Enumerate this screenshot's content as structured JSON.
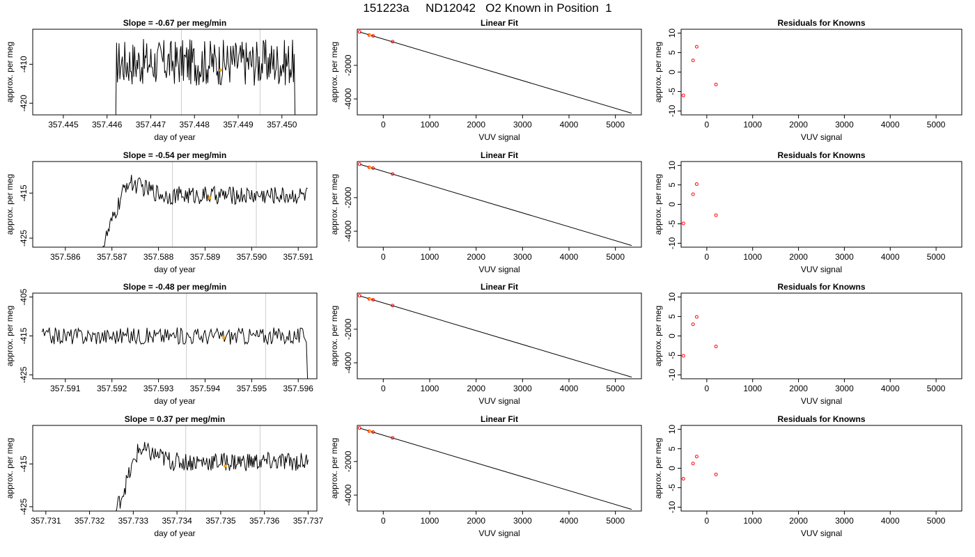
{
  "title": "151223a     ND12042   O2 Known in Position  1",
  "colors": {
    "line": "#000000",
    "marker_orange": "#ffa500",
    "marker_red": "#ff0000",
    "vline": "#cccccc"
  },
  "chart_data": [
    {
      "type": "line",
      "title": "Slope =  -0.67  per meg/min",
      "xlabel": "day of year",
      "ylabel": "approx. per meg",
      "xlim": [
        357.4443,
        357.4508
      ],
      "ylim": [
        -423,
        -401
      ],
      "xticks": [
        357.445,
        357.446,
        357.447,
        357.448,
        357.449,
        357.45
      ],
      "xtick_labels": [
        "357.445",
        "357.446",
        "357.447",
        "357.448",
        "357.449",
        "357.450"
      ],
      "yticks": [
        -420,
        -410
      ],
      "ytick_labels": [
        "-420",
        "-410"
      ],
      "vlines": [
        357.4477,
        357.4495
      ],
      "series_x_range": [
        357.4462,
        357.4503
      ],
      "series_level": -409.5,
      "series_noise": 6,
      "series_ramp": false,
      "start_value": -423,
      "end_value": -423,
      "marker": {
        "x": 357.4486,
        "y": -411.5
      }
    },
    {
      "type": "line",
      "title": "Slope =  -0.54  per meg/min",
      "xlabel": "day of year",
      "ylabel": "approx. per meg",
      "xlim": [
        357.5853,
        357.5914
      ],
      "ylim": [
        -427,
        -408
      ],
      "xticks": [
        357.586,
        357.587,
        357.588,
        357.589,
        357.59,
        357.591
      ],
      "xtick_labels": [
        "357.586",
        "357.587",
        "357.588",
        "357.589",
        "357.590",
        "357.591"
      ],
      "yticks": [
        -425,
        -415
      ],
      "ytick_labels": [
        "-425",
        "-415"
      ],
      "vlines": [
        357.5883,
        357.5901
      ],
      "series_x_range": [
        357.5868,
        357.5912
      ],
      "series_level": -415.5,
      "series_noise": 2,
      "series_ramp": true,
      "start_value": -427,
      "end_value": -414,
      "marker": {
        "x": 357.5891,
        "y": -416
      }
    },
    {
      "type": "line",
      "title": "Slope =  -0.48  per meg/min",
      "xlabel": "day of year",
      "ylabel": "approx. per meg",
      "xlim": [
        357.5903,
        357.5964
      ],
      "ylim": [
        -426,
        -404
      ],
      "xticks": [
        357.591,
        357.592,
        357.593,
        357.594,
        357.595,
        357.596
      ],
      "xtick_labels": [
        "357.591",
        "357.592",
        "357.593",
        "357.594",
        "357.595",
        "357.596"
      ],
      "yticks": [
        -425,
        -415,
        -405
      ],
      "ytick_labels": [
        "-425",
        "-415",
        "-405"
      ],
      "vlines": [
        357.5936,
        357.5953
      ],
      "series_x_range": [
        357.5905,
        357.5962
      ],
      "series_level": -415,
      "series_noise": 2.2,
      "series_ramp": false,
      "start_value": -414,
      "end_value": -426,
      "marker": {
        "x": 357.5944,
        "y": -415.5
      }
    },
    {
      "type": "line",
      "title": "Slope =  0.37  per meg/min",
      "xlabel": "day of year",
      "ylabel": "approx. per meg",
      "xlim": [
        357.7307,
        357.7372
      ],
      "ylim": [
        -426,
        -406
      ],
      "xticks": [
        357.731,
        357.732,
        357.733,
        357.734,
        357.735,
        357.736,
        357.737
      ],
      "xtick_labels": [
        "357.731",
        "357.732",
        "357.733",
        "357.734",
        "357.735",
        "357.736",
        "357.737"
      ],
      "yticks": [
        -425,
        -415
      ],
      "ytick_labels": [
        "-425",
        "-415"
      ],
      "vlines": [
        357.7342,
        357.7359
      ],
      "series_x_range": [
        357.7326,
        357.737
      ],
      "series_level": -414.5,
      "series_noise": 2.2,
      "series_ramp": true,
      "start_value": -426,
      "end_value": -414,
      "marker": {
        "x": 357.7351,
        "y": -415.5
      }
    },
    {
      "type": "scatter",
      "title": "Linear Fit",
      "xlabel": "VUV signal",
      "ylabel": "approx. per meg",
      "xlim": [
        -560,
        5560
      ],
      "ylim": [
        -4950,
        150
      ],
      "xticks": [
        0,
        1000,
        2000,
        3000,
        4000,
        5000
      ],
      "xtick_labels": [
        "0",
        "1000",
        "2000",
        "3000",
        "4000",
        "5000"
      ],
      "yticks": [
        -4000,
        -2000
      ],
      "ytick_labels": [
        "-4000",
        "-2000"
      ],
      "fit_line": [
        [
          -500,
          -20
        ],
        [
          5350,
          -4850
        ]
      ],
      "points": [
        [
          -510,
          -5
        ],
        [
          -300,
          -195
        ],
        [
          -220,
          -245
        ],
        [
          200,
          -590
        ]
      ],
      "orange_points": [
        [
          -290,
          -195
        ]
      ]
    },
    {
      "type": "scatter",
      "title": "Linear Fit",
      "xlabel": "VUV signal",
      "ylabel": "approx. per meg",
      "xlim": [
        -560,
        5560
      ],
      "ylim": [
        -4950,
        150
      ],
      "xticks": [
        0,
        1000,
        2000,
        3000,
        4000,
        5000
      ],
      "xtick_labels": [
        "0",
        "1000",
        "2000",
        "3000",
        "4000",
        "5000"
      ],
      "yticks": [
        -4000,
        -2000
      ],
      "ytick_labels": [
        "-4000",
        "-2000"
      ],
      "fit_line": [
        [
          -500,
          -20
        ],
        [
          5350,
          -4850
        ]
      ],
      "points": [
        [
          -510,
          -5
        ],
        [
          -300,
          -195
        ],
        [
          -220,
          -245
        ],
        [
          200,
          -590
        ]
      ],
      "orange_points": [
        [
          -290,
          -195
        ]
      ]
    },
    {
      "type": "scatter",
      "title": "Linear Fit",
      "xlabel": "VUV signal",
      "ylabel": "approx. per meg",
      "xlim": [
        -560,
        5560
      ],
      "ylim": [
        -4950,
        150
      ],
      "xticks": [
        0,
        1000,
        2000,
        3000,
        4000,
        5000
      ],
      "xtick_labels": [
        "0",
        "1000",
        "2000",
        "3000",
        "4000",
        "5000"
      ],
      "yticks": [
        -4000,
        -2000
      ],
      "ytick_labels": [
        "-4000",
        "-2000"
      ],
      "fit_line": [
        [
          -500,
          -20
        ],
        [
          5350,
          -4850
        ]
      ],
      "points": [
        [
          -510,
          -5
        ],
        [
          -300,
          -195
        ],
        [
          -220,
          -245
        ],
        [
          200,
          -590
        ]
      ],
      "orange_points": [
        [
          -290,
          -195
        ]
      ]
    },
    {
      "type": "scatter",
      "title": "Linear Fit",
      "xlabel": "VUV signal",
      "ylabel": "approx. per meg",
      "xlim": [
        -560,
        5560
      ],
      "ylim": [
        -4950,
        150
      ],
      "xticks": [
        0,
        1000,
        2000,
        3000,
        4000,
        5000
      ],
      "xtick_labels": [
        "0",
        "1000",
        "2000",
        "3000",
        "4000",
        "5000"
      ],
      "yticks": [
        -4000,
        -2000
      ],
      "ytick_labels": [
        "-4000",
        "-2000"
      ],
      "fit_line": [
        [
          -500,
          -20
        ],
        [
          5350,
          -4850
        ]
      ],
      "points": [
        [
          -510,
          -5
        ],
        [
          -300,
          -195
        ],
        [
          -220,
          -245
        ],
        [
          200,
          -590
        ]
      ],
      "orange_points": [
        [
          -290,
          -195
        ]
      ]
    },
    {
      "type": "scatter",
      "title": "Residuals for Knowns",
      "xlabel": "VUV signal",
      "ylabel": "approx. per meg",
      "xlim": [
        -560,
        5560
      ],
      "ylim": [
        -11,
        11
      ],
      "xticks": [
        0,
        1000,
        2000,
        3000,
        4000,
        5000
      ],
      "xtick_labels": [
        "0",
        "1000",
        "2000",
        "3000",
        "4000",
        "5000"
      ],
      "yticks": [
        -10,
        -5,
        0,
        5,
        10
      ],
      "ytick_labels": [
        "-10",
        "-5",
        "0",
        "5",
        "10"
      ],
      "points": [
        [
          -510,
          -6
        ],
        [
          -300,
          3
        ],
        [
          -220,
          6.5
        ],
        [
          200,
          -3.2
        ]
      ]
    },
    {
      "type": "scatter",
      "title": "Residuals for Knowns",
      "xlabel": "VUV signal",
      "ylabel": "approx. per meg",
      "xlim": [
        -560,
        5560
      ],
      "ylim": [
        -11,
        11
      ],
      "xticks": [
        0,
        1000,
        2000,
        3000,
        4000,
        5000
      ],
      "xtick_labels": [
        "0",
        "1000",
        "2000",
        "3000",
        "4000",
        "5000"
      ],
      "yticks": [
        -10,
        -5,
        0,
        5,
        10
      ],
      "ytick_labels": [
        "-10",
        "-5",
        "0",
        "5",
        "10"
      ],
      "points": [
        [
          -510,
          -4.9
        ],
        [
          -300,
          2.6
        ],
        [
          -220,
          5.2
        ],
        [
          200,
          -2.8
        ]
      ]
    },
    {
      "type": "scatter",
      "title": "Residuals for Knowns",
      "xlabel": "VUV signal",
      "ylabel": "approx. per meg",
      "xlim": [
        -560,
        5560
      ],
      "ylim": [
        -11,
        11
      ],
      "xticks": [
        0,
        1000,
        2000,
        3000,
        4000,
        5000
      ],
      "xtick_labels": [
        "0",
        "1000",
        "2000",
        "3000",
        "4000",
        "5000"
      ],
      "yticks": [
        -10,
        -5,
        0,
        5,
        10
      ],
      "ytick_labels": [
        "-10",
        "-5",
        "0",
        "5",
        "10"
      ],
      "points": [
        [
          -510,
          -5.1
        ],
        [
          -300,
          3
        ],
        [
          -220,
          4.9
        ],
        [
          200,
          -2.7
        ]
      ]
    },
    {
      "type": "scatter",
      "title": "Residuals for Knowns",
      "xlabel": "VUV signal",
      "ylabel": "approx. per meg",
      "xlim": [
        -560,
        5560
      ],
      "ylim": [
        -11,
        11
      ],
      "xticks": [
        0,
        1000,
        2000,
        3000,
        4000,
        5000
      ],
      "xtick_labels": [
        "0",
        "1000",
        "2000",
        "3000",
        "4000",
        "5000"
      ],
      "yticks": [
        -10,
        -5,
        0,
        5,
        10
      ],
      "ytick_labels": [
        "-10",
        "-5",
        "0",
        "5",
        "10"
      ],
      "points": [
        [
          -510,
          -2.7
        ],
        [
          -300,
          1.2
        ],
        [
          -220,
          3
        ],
        [
          200,
          -1.6
        ]
      ]
    }
  ]
}
